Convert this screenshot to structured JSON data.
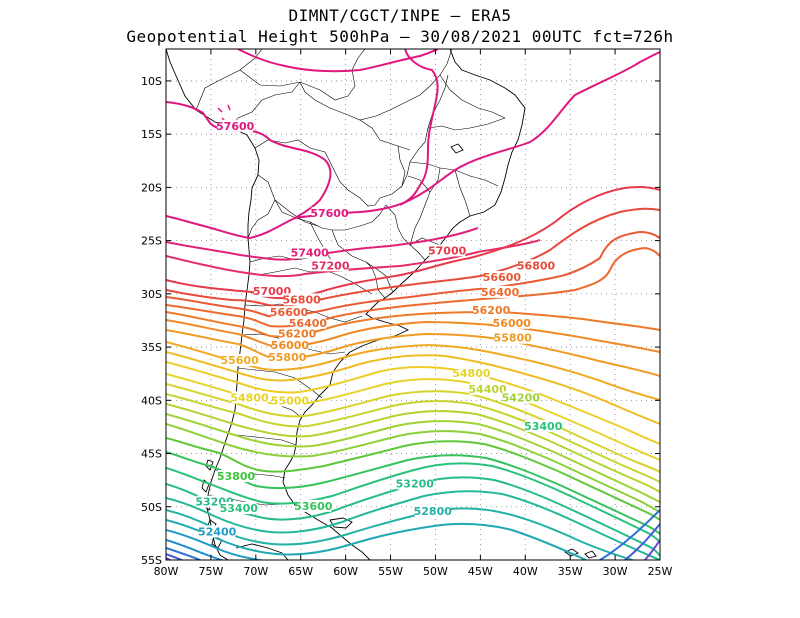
{
  "title": {
    "line1": "DIMNT/CGCT/INPE –  ERA5",
    "line2": "Geopotential Height 500hPa –  30/08/2021 00UTC fct=726h"
  },
  "axes": {
    "lat_labels": [
      "10S",
      "15S",
      "20S",
      "25S",
      "30S",
      "35S",
      "40S",
      "45S",
      "50S",
      "55S"
    ],
    "lat_values": [
      -10,
      -15,
      -20,
      -25,
      -30,
      -35,
      -40,
      -45,
      -50,
      -55
    ],
    "lon_labels": [
      "80W",
      "75W",
      "70W",
      "65W",
      "60W",
      "55W",
      "50W",
      "45W",
      "40W",
      "35W",
      "30W",
      "25W"
    ],
    "lon_values": [
      -80,
      -75,
      -70,
      -65,
      -60,
      -55,
      -50,
      -45,
      -40,
      -35,
      -30,
      -25
    ],
    "lon_range": [
      -80,
      -25
    ],
    "lat_range": [
      -55,
      -7
    ]
  },
  "contour_labels": [
    {
      "text": "57600",
      "lon": -72.3,
      "lat": -14.5,
      "color": "#e0177f"
    },
    {
      "text": "57600",
      "lon": -61.8,
      "lat": -22.7,
      "color": "#e0177f"
    },
    {
      "text": "57400",
      "lon": -64.0,
      "lat": -26.4,
      "color": "#e2207a"
    },
    {
      "text": "57200",
      "lon": -61.7,
      "lat": -27.6,
      "color": "#e32f64"
    },
    {
      "text": "57000",
      "lon": -48.7,
      "lat": -26.2,
      "color": "#e63a4a"
    },
    {
      "text": "56800",
      "lon": -38.8,
      "lat": -27.6,
      "color": "#e84a3c"
    },
    {
      "text": "56600",
      "lon": -42.6,
      "lat": -28.7,
      "color": "#ea5a34"
    },
    {
      "text": "56400",
      "lon": -42.8,
      "lat": -30.1,
      "color": "#ec6a2e"
    },
    {
      "text": "57000",
      "lon": -68.2,
      "lat": -30.0,
      "color": "#e63a4a"
    },
    {
      "text": "56800",
      "lon": -64.9,
      "lat": -30.8,
      "color": "#e84a3c"
    },
    {
      "text": "56600",
      "lon": -66.3,
      "lat": -32.0,
      "color": "#ea5a34"
    },
    {
      "text": "56400",
      "lon": -64.2,
      "lat": -33.0,
      "color": "#ec6a2e"
    },
    {
      "text": "56200",
      "lon": -65.4,
      "lat": -34.0,
      "color": "#ee7a28"
    },
    {
      "text": "56000",
      "lon": -66.2,
      "lat": -35.1,
      "color": "#ef8a24"
    },
    {
      "text": "55800",
      "lon": -66.5,
      "lat": -36.2,
      "color": "#f09b22"
    },
    {
      "text": "55600",
      "lon": -71.8,
      "lat": -36.5,
      "color": "#f0ab22"
    },
    {
      "text": "56200",
      "lon": -43.8,
      "lat": -31.8,
      "color": "#ee7a28"
    },
    {
      "text": "56000",
      "lon": -41.5,
      "lat": -33.0,
      "color": "#ef8a24"
    },
    {
      "text": "55800",
      "lon": -41.4,
      "lat": -34.4,
      "color": "#f09b22"
    },
    {
      "text": "54800",
      "lon": -46.0,
      "lat": -37.7,
      "color": "#e6d42a"
    },
    {
      "text": "54400",
      "lon": -44.2,
      "lat": -39.2,
      "color": "#bcd42e"
    },
    {
      "text": "54200",
      "lon": -40.5,
      "lat": -40.0,
      "color": "#9fd234"
    },
    {
      "text": "54800",
      "lon": -70.7,
      "lat": -40.0,
      "color": "#e6d42a"
    },
    {
      "text": "55000",
      "lon": -66.2,
      "lat": -40.3,
      "color": "#e6d42a"
    },
    {
      "text": "53400",
      "lon": -38.0,
      "lat": -42.7,
      "color": "#28c27a"
    },
    {
      "text": "53800",
      "lon": -72.2,
      "lat": -47.4,
      "color": "#3ec43c"
    },
    {
      "text": "53200",
      "lon": -52.3,
      "lat": -48.1,
      "color": "#26bc8a"
    },
    {
      "text": "53600",
      "lon": -63.6,
      "lat": -50.2,
      "color": "#34c25a"
    },
    {
      "text": "53200",
      "lon": -74.6,
      "lat": -49.8,
      "color": "#26bc8a"
    },
    {
      "text": "53400",
      "lon": -71.9,
      "lat": -50.4,
      "color": "#28c27a"
    },
    {
      "text": "52800",
      "lon": -50.3,
      "lat": -50.7,
      "color": "#22b2a6"
    },
    {
      "text": "52400",
      "lon": -74.3,
      "lat": -52.6,
      "color": "#1e9cc4"
    }
  ]
}
